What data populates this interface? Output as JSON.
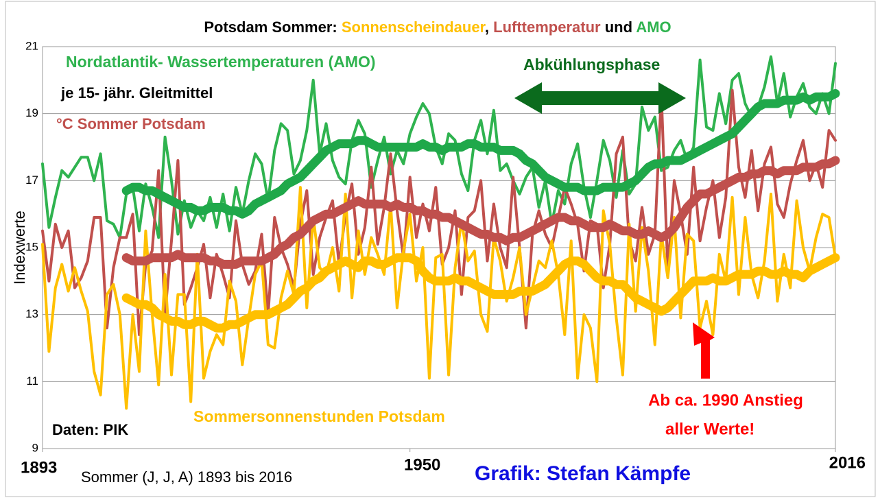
{
  "chart_data": {
    "type": "line",
    "title": [
      "Potsdam Sommer: ",
      "Sonnenscheindauer",
      ", ",
      "Lufttemperatur",
      " und ",
      "AMO"
    ],
    "y_label": "Indexwerte",
    "x_caption": "Sommer (J, J, A) 1893 bis 2016",
    "annotations": [
      "Nordatlantik- Wassertemperaturen (AMO)",
      "je 15- jähr. Gleitmittel",
      "°C Sommer Potsdam",
      "Abkühlungsphase",
      "Sommersonnenstunden  Potsdam",
      "Daten: PIK",
      "Ab ca. 1990 Anstieg",
      "aller Werte!",
      "Grafik: Stefan Kämpfe"
    ],
    "xlim": [
      1893,
      2016
    ],
    "xticks": [
      1893,
      1950,
      2016
    ],
    "ylim": [
      9,
      21
    ],
    "yticks": [
      9,
      11,
      13,
      15,
      17,
      19,
      21
    ],
    "grid": true,
    "x": [
      1893,
      1894,
      1895,
      1896,
      1897,
      1898,
      1899,
      1900,
      1901,
      1902,
      1903,
      1904,
      1905,
      1906,
      1907,
      1908,
      1909,
      1910,
      1911,
      1912,
      1913,
      1914,
      1915,
      1916,
      1917,
      1918,
      1919,
      1920,
      1921,
      1922,
      1923,
      1924,
      1925,
      1926,
      1927,
      1928,
      1929,
      1930,
      1931,
      1932,
      1933,
      1934,
      1935,
      1936,
      1937,
      1938,
      1939,
      1940,
      1941,
      1942,
      1943,
      1944,
      1945,
      1946,
      1947,
      1948,
      1949,
      1950,
      1951,
      1952,
      1953,
      1954,
      1955,
      1956,
      1957,
      1958,
      1959,
      1960,
      1961,
      1962,
      1963,
      1964,
      1965,
      1966,
      1967,
      1968,
      1969,
      1970,
      1971,
      1972,
      1973,
      1974,
      1975,
      1976,
      1977,
      1978,
      1979,
      1980,
      1981,
      1982,
      1983,
      1984,
      1985,
      1986,
      1987,
      1988,
      1989,
      1990,
      1991,
      1992,
      1993,
      1994,
      1995,
      1996,
      1997,
      1998,
      1999,
      2000,
      2001,
      2002,
      2003,
      2004,
      2005,
      2006,
      2007,
      2008,
      2009,
      2010,
      2011,
      2012,
      2013,
      2014,
      2015,
      2016
    ],
    "series": [
      {
        "name": "Nordatlantik- Wassertemperaturen (AMO)",
        "color": "#2fb34f",
        "smooth": false,
        "values": [
          17.5,
          15.6,
          16.5,
          17.3,
          17.1,
          17.4,
          17.7,
          17.7,
          17.0,
          17.8,
          15.8,
          15.7,
          15.3,
          16.6,
          16.8,
          15.5,
          16.9,
          16.2,
          15.3,
          18.3,
          17.0,
          15.4,
          16.4,
          15.6,
          16.1,
          15.8,
          16.5,
          15.6,
          16.6,
          15.5,
          16.8,
          16.0,
          17.0,
          17.8,
          17.5,
          16.4,
          17.9,
          18.7,
          18.5,
          17.2,
          17.6,
          18.5,
          20.0,
          17.8,
          18.7,
          17.6,
          17.1,
          16.9,
          18.2,
          18.8,
          18.4,
          16.8,
          17.6,
          18.3,
          17.2,
          17.9,
          17.5,
          18.4,
          18.9,
          19.3,
          19.0,
          18.0,
          17.5,
          18.4,
          18.2,
          17.2,
          16.7,
          18.2,
          18.8,
          17.8,
          19.1,
          17.3,
          17.5,
          17.0,
          16.6,
          17.1,
          17.4,
          16.2,
          17.0,
          15.7,
          16.7,
          16.3,
          17.5,
          18.1,
          16.8,
          15.9,
          17.0,
          18.2,
          17.6,
          16.5,
          17.9,
          16.6,
          16.9,
          19.2,
          18.5,
          18.9,
          17.3,
          17.4,
          17.9,
          18.2,
          17.6,
          18.0,
          20.6,
          18.6,
          18.5,
          19.6,
          18.7,
          20.0,
          20.2,
          19.3,
          18.9,
          19.2,
          19.8,
          20.7,
          19.3,
          20.2,
          18.9,
          19.5,
          19.9,
          19.2,
          19.0,
          19.6,
          19.0,
          20.5
        ]
      },
      {
        "name": "°C Sommer Potsdam",
        "color": "#c0504d",
        "smooth": false,
        "values": [
          15.5,
          14.0,
          15.7,
          15.0,
          15.5,
          13.8,
          14.1,
          14.6,
          15.9,
          15.9,
          12.6,
          14.4,
          15.3,
          15.3,
          16.0,
          12.4,
          14.5,
          14.9,
          17.3,
          13.0,
          15.2,
          17.6,
          13.3,
          13.8,
          14.4,
          15.1,
          13.5,
          14.8,
          14.2,
          13.5,
          15.8,
          14.5,
          13.9,
          14.3,
          15.4,
          13.0,
          15.9,
          15.0,
          14.5,
          13.8,
          15.7,
          16.7,
          14.2,
          15.3,
          15.9,
          16.4,
          14.5,
          16.0,
          16.9,
          14.8,
          15.6,
          17.4,
          15.1,
          16.2,
          17.8,
          16.1,
          14.7,
          17.1,
          15.3,
          16.3,
          15.5,
          16.8,
          14.5,
          15.0,
          16.1,
          13.6,
          15.9,
          16.1,
          17.0,
          14.6,
          16.3,
          15.0,
          14.4,
          17.1,
          15.0,
          12.6,
          15.4,
          16.1,
          15.4,
          15.0,
          15.9,
          16.8,
          16.3,
          15.7,
          14.3,
          15.8,
          15.7,
          13.8,
          15.1,
          17.8,
          18.3,
          15.2,
          14.6,
          16.2,
          14.8,
          15.4,
          19.6,
          14.3,
          17.0,
          16.0,
          14.8,
          17.4,
          15.2,
          16.2,
          17.0,
          15.3,
          16.5,
          19.7,
          17.4,
          16.5,
          17.9,
          16.1,
          17.5,
          18.0,
          16.3,
          15.9,
          16.9,
          17.6,
          18.2,
          17.0,
          17.5,
          16.8,
          18.5,
          18.2
        ]
      },
      {
        "name": "Sommersonnenstunden  Potsdam",
        "color": "#ffc000",
        "smooth": false,
        "values": [
          15.1,
          11.9,
          13.8,
          14.5,
          13.7,
          14.4,
          13.7,
          13.1,
          11.3,
          10.6,
          13.6,
          13.9,
          13.0,
          10.2,
          13.0,
          11.3,
          15.5,
          13.0,
          10.9,
          14.2,
          11.2,
          13.6,
          13.6,
          10.4,
          14.8,
          11.1,
          11.9,
          12.4,
          12.1,
          14.0,
          13.4,
          11.5,
          12.9,
          14.2,
          14.6,
          12.1,
          12.0,
          13.5,
          14.3,
          13.6,
          16.8,
          13.2,
          15.9,
          14.4,
          14.2,
          15.0,
          13.7,
          16.6,
          13.5,
          15.5,
          14.2,
          15.3,
          14.8,
          14.2,
          16.3,
          13.2,
          14.9,
          16.0,
          14.0,
          15.0,
          11.1,
          14.7,
          14.8,
          11.2,
          14.4,
          15.8,
          14.6,
          14.9,
          13.0,
          12.5,
          15.3,
          14.6,
          13.4,
          14.1,
          15.0,
          13.0,
          13.8,
          14.6,
          14.4,
          15.2,
          14.2,
          12.4,
          15.2,
          11.1,
          13.0,
          12.6,
          11.0,
          16.1,
          15.1,
          12.9,
          11.2,
          15.7,
          13.1,
          15.6,
          14.3,
          12.1,
          15.4,
          14.1,
          15.9,
          12.9,
          15.4,
          15.2,
          12.6,
          13.4,
          12.4,
          14.8,
          14.0,
          16.5,
          13.6,
          15.9,
          14.2,
          13.5,
          14.6,
          16.6,
          13.4,
          14.8,
          13.8,
          16.4,
          15.0,
          14.3,
          15.3,
          16.0,
          15.9,
          14.7
        ]
      },
      {
        "color": "#1fa84a",
        "smooth": true,
        "values": [
          null,
          null,
          null,
          null,
          null,
          null,
          null,
          null,
          null,
          null,
          null,
          null,
          null,
          16.7,
          16.8,
          16.8,
          16.7,
          16.7,
          16.6,
          16.5,
          16.4,
          16.3,
          16.2,
          16.2,
          16.1,
          16.1,
          16.2,
          16.2,
          16.2,
          16.1,
          16.1,
          16.0,
          16.1,
          16.3,
          16.4,
          16.5,
          16.6,
          16.7,
          16.9,
          17.0,
          17.1,
          17.3,
          17.5,
          17.7,
          17.9,
          18.0,
          18.1,
          18.1,
          18.1,
          18.2,
          18.2,
          18.1,
          18.0,
          18.0,
          18.0,
          18.0,
          18.0,
          18.0,
          18.0,
          18.1,
          18.0,
          18.0,
          17.9,
          18.0,
          18.0,
          18.0,
          18.1,
          18.1,
          18.0,
          18.0,
          18.0,
          17.9,
          17.9,
          17.9,
          17.8,
          17.6,
          17.5,
          17.3,
          17.1,
          17.0,
          16.9,
          16.8,
          16.8,
          16.8,
          16.7,
          16.7,
          16.7,
          16.8,
          16.8,
          16.8,
          16.8,
          16.9,
          17.0,
          17.2,
          17.4,
          17.5,
          17.5,
          17.6,
          17.6,
          17.6,
          17.7,
          17.8,
          17.9,
          18.0,
          18.1,
          18.2,
          18.3,
          18.4,
          18.6,
          18.8,
          19.0,
          19.2,
          19.3,
          19.3,
          19.3,
          19.4,
          19.4,
          19.4,
          19.5,
          19.4,
          19.5,
          19.5,
          19.5,
          19.6
        ]
      },
      {
        "color": "#c0504d",
        "smooth": true,
        "values": [
          null,
          null,
          null,
          null,
          null,
          null,
          null,
          null,
          null,
          null,
          null,
          null,
          null,
          14.7,
          14.6,
          14.6,
          14.6,
          14.7,
          14.7,
          14.7,
          14.7,
          14.8,
          14.7,
          14.7,
          14.7,
          14.7,
          14.6,
          14.6,
          14.5,
          14.5,
          14.5,
          14.6,
          14.6,
          14.6,
          14.6,
          14.7,
          14.8,
          15.0,
          15.1,
          15.3,
          15.4,
          15.6,
          15.8,
          15.9,
          16.0,
          16.0,
          16.1,
          16.2,
          16.3,
          16.4,
          16.3,
          16.3,
          16.3,
          16.3,
          16.2,
          16.3,
          16.2,
          16.2,
          16.1,
          16.1,
          16.0,
          16.0,
          15.9,
          15.9,
          15.8,
          15.7,
          15.6,
          15.5,
          15.4,
          15.4,
          15.3,
          15.3,
          15.2,
          15.3,
          15.3,
          15.4,
          15.5,
          15.6,
          15.7,
          15.8,
          15.9,
          15.9,
          15.8,
          15.8,
          15.7,
          15.6,
          15.6,
          15.6,
          15.7,
          15.6,
          15.5,
          15.5,
          15.4,
          15.4,
          15.5,
          15.4,
          15.3,
          15.4,
          15.6,
          15.9,
          16.2,
          16.4,
          16.6,
          16.6,
          16.7,
          16.8,
          16.9,
          17.0,
          17.1,
          17.1,
          17.2,
          17.2,
          17.3,
          17.3,
          17.2,
          17.3,
          17.3,
          17.3,
          17.4,
          17.4,
          17.4,
          17.5,
          17.5,
          17.6
        ]
      },
      {
        "color": "#ffc000",
        "smooth": true,
        "values": [
          null,
          null,
          null,
          null,
          null,
          null,
          null,
          null,
          null,
          null,
          null,
          null,
          null,
          13.5,
          13.4,
          13.3,
          13.3,
          13.2,
          13.0,
          12.9,
          12.8,
          12.8,
          12.7,
          12.7,
          12.8,
          12.8,
          12.7,
          12.6,
          12.6,
          12.7,
          12.7,
          12.8,
          12.9,
          13.0,
          13.0,
          13.0,
          13.1,
          13.2,
          13.3,
          13.5,
          13.7,
          13.8,
          14.0,
          14.1,
          14.3,
          14.4,
          14.5,
          14.6,
          14.5,
          14.4,
          14.6,
          14.6,
          14.5,
          14.5,
          14.6,
          14.7,
          14.7,
          14.7,
          14.6,
          14.3,
          14.1,
          14.0,
          14.0,
          14.0,
          14.1,
          14.0,
          14.0,
          13.9,
          13.8,
          13.7,
          13.6,
          13.6,
          13.6,
          13.6,
          13.7,
          13.7,
          13.7,
          13.8,
          13.9,
          14.1,
          14.3,
          14.5,
          14.6,
          14.6,
          14.5,
          14.3,
          14.1,
          14.0,
          14.0,
          13.9,
          13.9,
          13.7,
          13.5,
          13.4,
          13.3,
          13.2,
          13.1,
          13.2,
          13.4,
          13.6,
          13.8,
          14.0,
          14.0,
          14.0,
          14.1,
          14.0,
          14.0,
          14.1,
          14.2,
          14.2,
          14.2,
          14.3,
          14.3,
          14.2,
          14.2,
          14.3,
          14.2,
          14.2,
          14.1,
          14.3,
          14.4,
          14.5,
          14.6,
          14.7
        ]
      }
    ]
  }
}
